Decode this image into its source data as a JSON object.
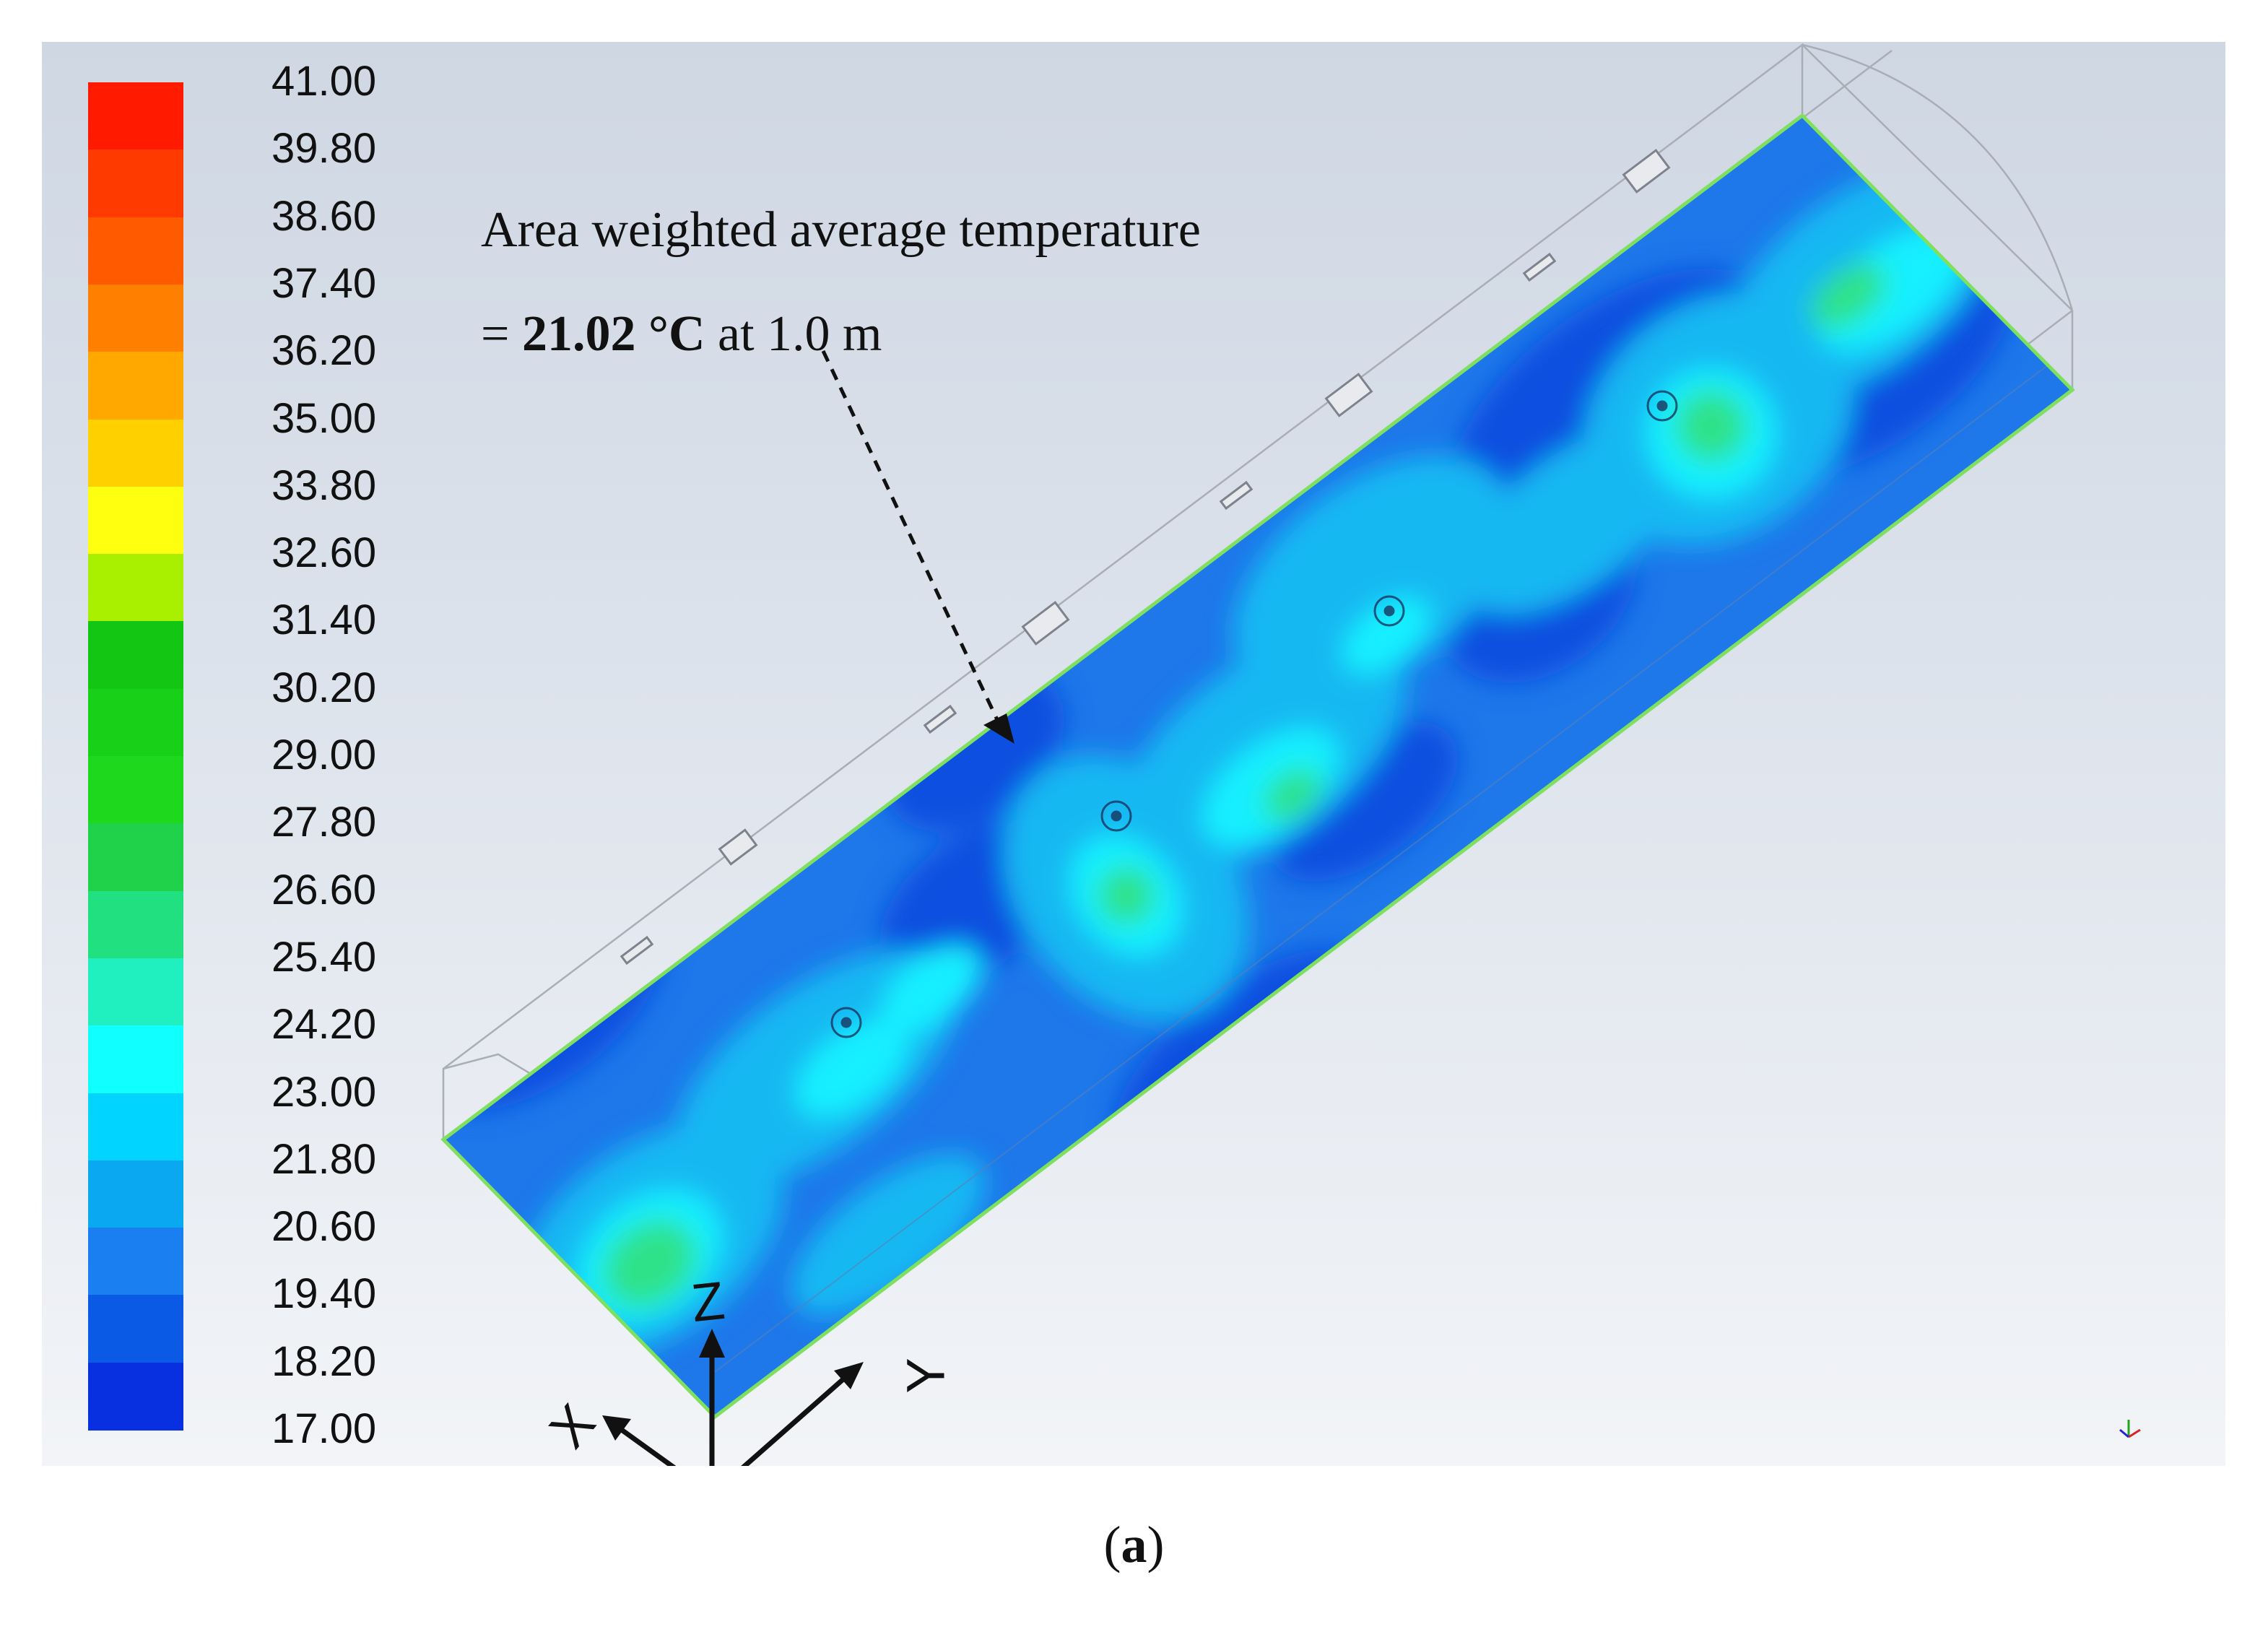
{
  "legend": {
    "ticks": [
      "41.00",
      "39.80",
      "38.60",
      "37.40",
      "36.20",
      "35.00",
      "33.80",
      "32.60",
      "31.40",
      "30.20",
      "29.00",
      "27.80",
      "26.60",
      "25.40",
      "24.20",
      "23.00",
      "21.80",
      "20.60",
      "19.40",
      "18.20",
      "17.00"
    ],
    "colors": [
      "#ff1a00",
      "#ff3a00",
      "#ff5a00",
      "#ff8000",
      "#ffa800",
      "#ffd000",
      "#ffff10",
      "#a8f000",
      "#13c613",
      "#19d019",
      "#1ed81e",
      "#1fd24a",
      "#20e080",
      "#20f0c0",
      "#10ffff",
      "#00d4ff",
      "#0aa8f0",
      "#1a7ff0",
      "#0a5ae6",
      "#0830e0",
      "#0010e8"
    ]
  },
  "annotation": {
    "line1": "Area weighted average temperature",
    "eq": "= ",
    "value": "21.02 °C",
    "at": " at 1.0 m"
  },
  "axes": {
    "x": "X",
    "y": "Y",
    "z": "Z"
  },
  "caption": {
    "open": "(",
    "letter": "a",
    "close": ")"
  },
  "colors": {
    "base": "#1e78ea",
    "deep": "#0a4fe0",
    "light": "#18b8f2",
    "cyan": "#14f0ff",
    "green": "#2fe28a",
    "edge": "#7fe060"
  }
}
